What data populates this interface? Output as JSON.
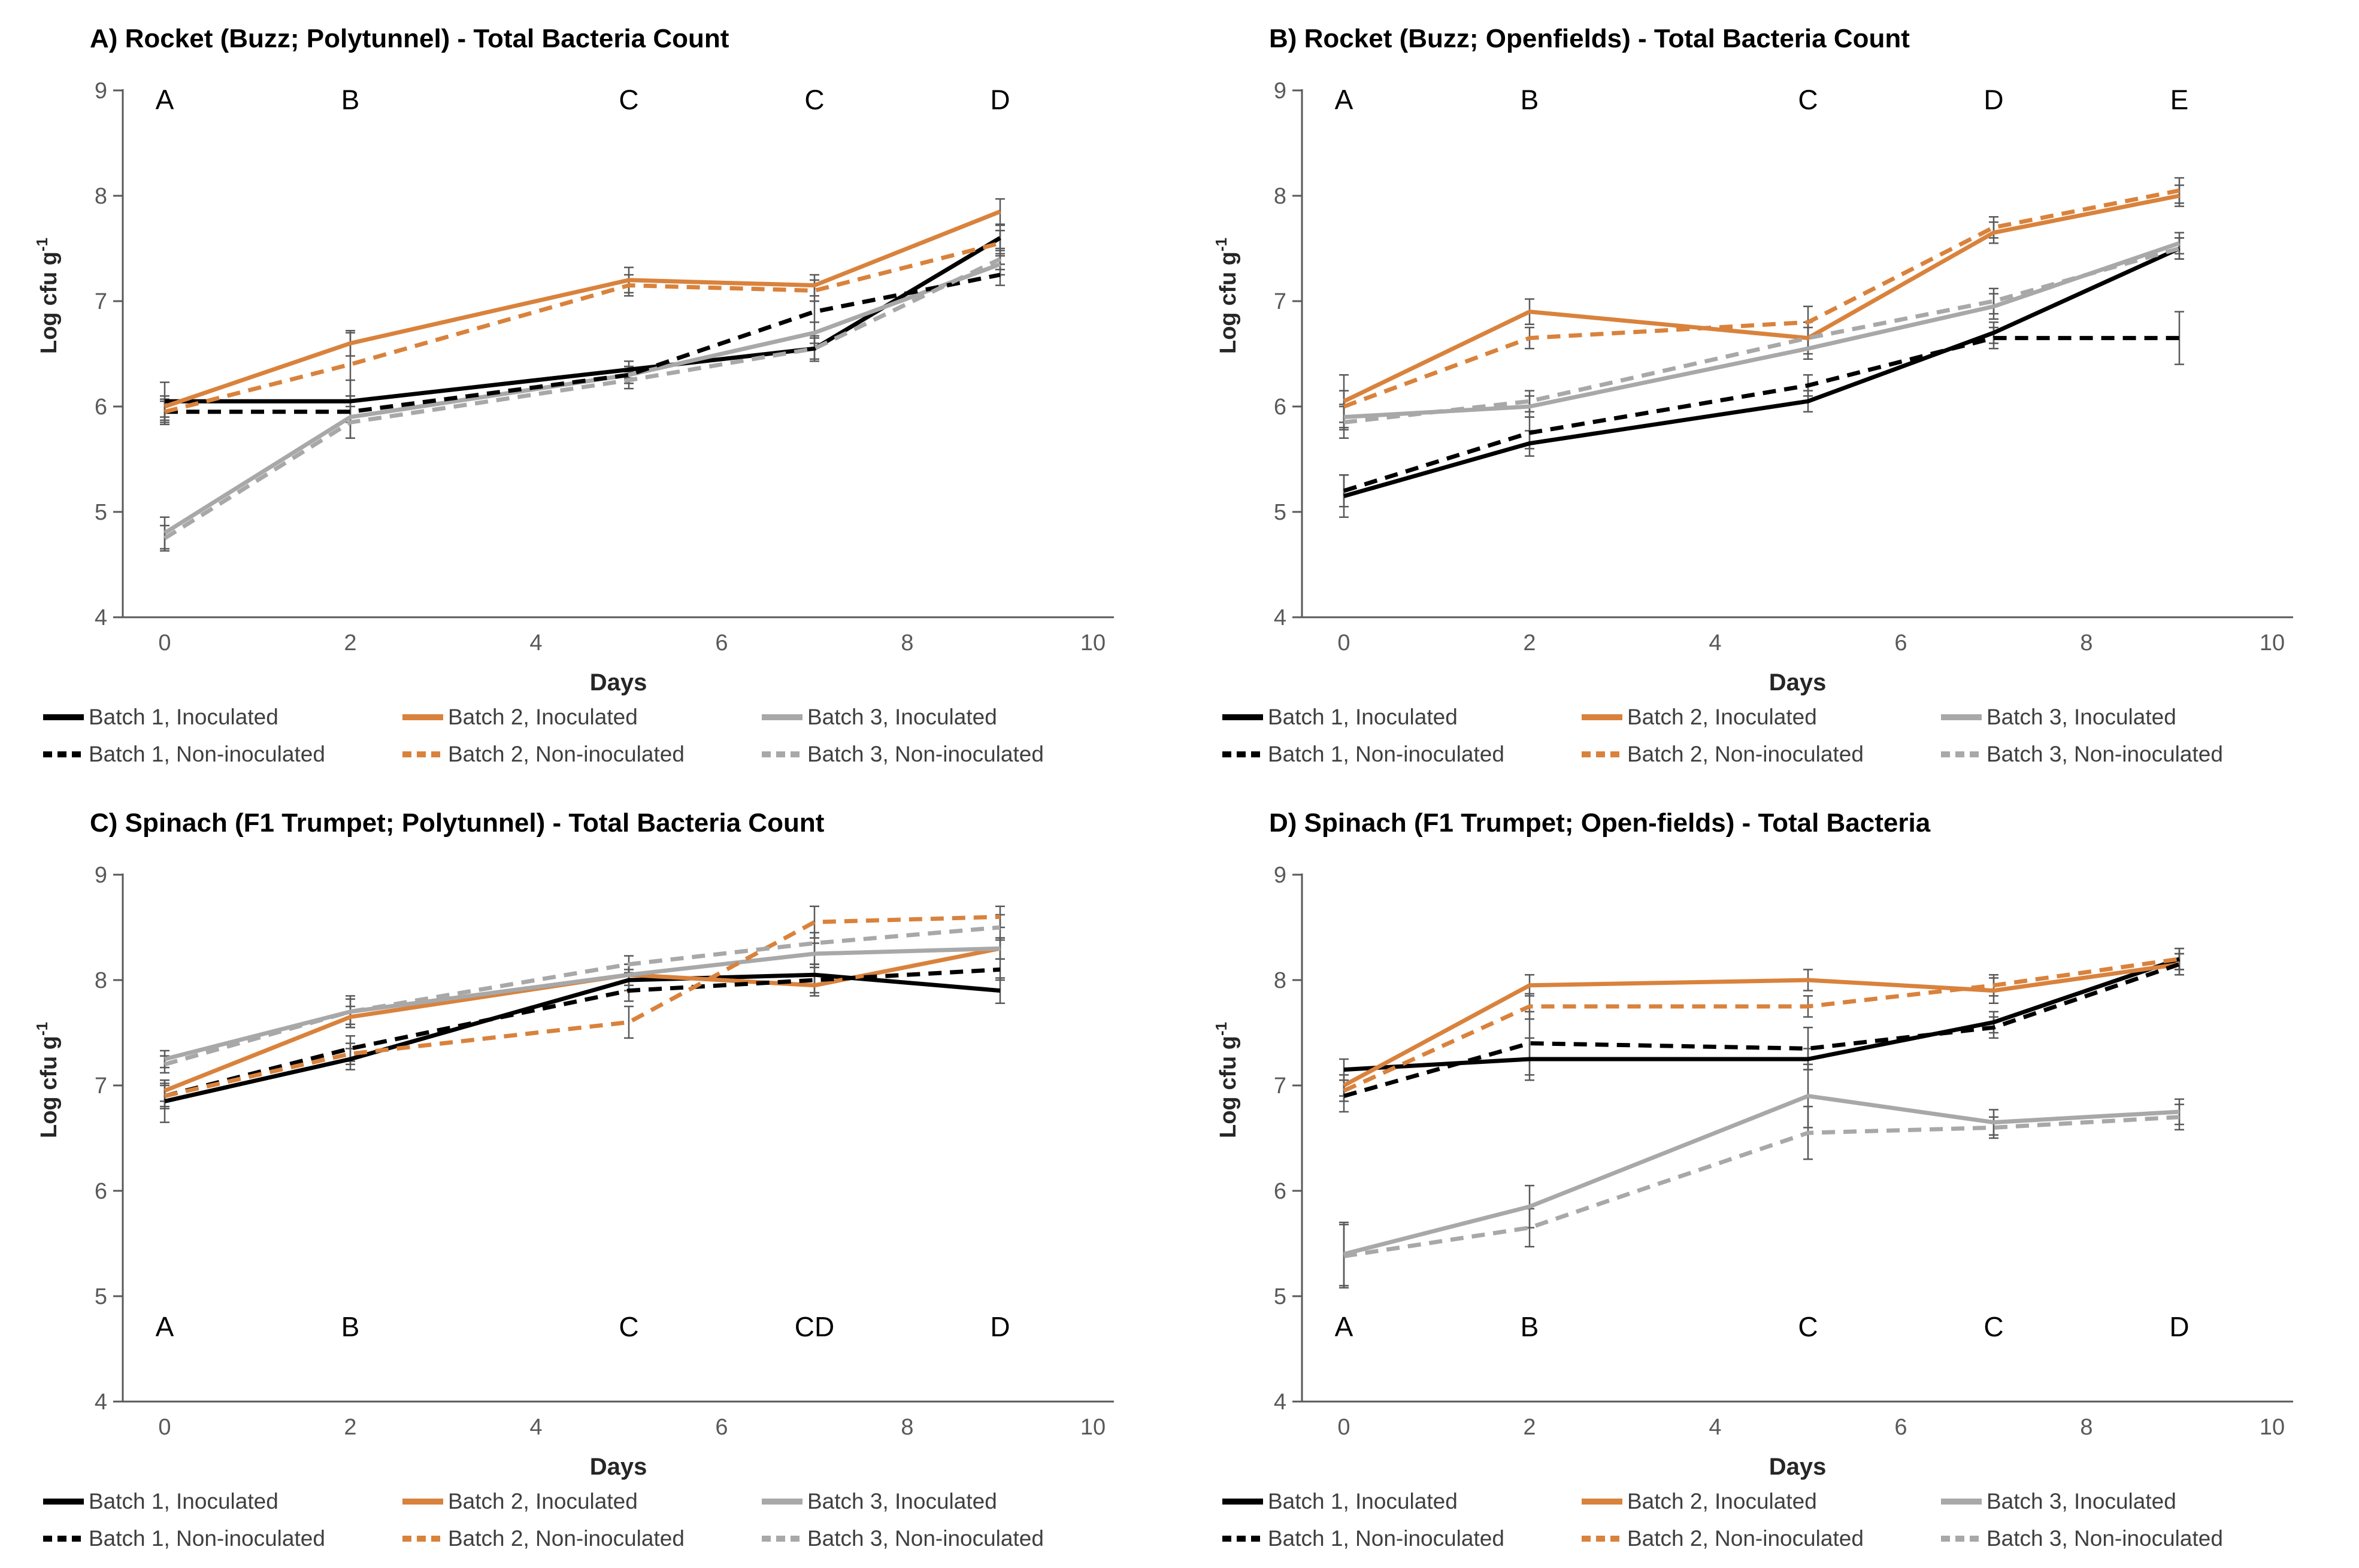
{
  "colors": {
    "batch1": "#000000",
    "batch2": "#D9823C",
    "batch3": "#A8A8A8",
    "axis": "#595959",
    "tick_text": "#595959",
    "error_bar": "#595959",
    "legend_text": "#3F3F3F",
    "title_text": "#000000",
    "letter_text": "#000000"
  },
  "shared": {
    "xlabel": "Days",
    "ylabel": "Log cfu g",
    "ylabel_superscript": "-1",
    "xticks": [
      0,
      2,
      4,
      6,
      8,
      10
    ],
    "yticks": [
      9,
      8,
      7,
      6,
      5,
      4
    ],
    "ylim": [
      4,
      9
    ],
    "grid": "off",
    "legend_position": "bottom"
  },
  "chart_data": [
    {
      "type": "line",
      "title": "A) Rocket (Buzz; Polytunnel) - Total Bacteria Count",
      "letters_position": "top",
      "x_days": [
        0,
        2,
        5,
        7,
        9
      ],
      "letters": [
        {
          "label": "A",
          "day": 0
        },
        {
          "label": "B",
          "day": 2
        },
        {
          "label": "C",
          "day": 5
        },
        {
          "label": "C",
          "day": 7
        },
        {
          "label": "D",
          "day": 9
        }
      ],
      "series": [
        {
          "name": "Batch 1, Inoculated",
          "batch": "batch1",
          "style": "solid",
          "values": [
            6.05,
            6.05,
            6.35,
            6.55,
            7.6
          ],
          "errors": [
            0.18,
            0.2,
            0.08,
            0.1,
            0.12
          ]
        },
        {
          "name": "Batch 2, Inoculated",
          "batch": "batch2",
          "style": "solid",
          "values": [
            6.0,
            6.6,
            7.2,
            7.15,
            7.85
          ],
          "errors": [
            0.1,
            0.12,
            0.12,
            0.1,
            0.12
          ]
        },
        {
          "name": "Batch 3, Inoculated",
          "batch": "batch3",
          "style": "solid",
          "values": [
            4.8,
            5.9,
            6.3,
            6.7,
            7.35
          ],
          "errors": [
            0.15,
            0.2,
            0.08,
            0.1,
            0.1
          ]
        },
        {
          "name": "Batch 1, Non-inoculated",
          "batch": "batch1",
          "style": "dashed",
          "values": [
            5.95,
            5.95,
            6.3,
            6.9,
            7.25
          ],
          "errors": [
            0.12,
            0.1,
            0.08,
            0.1,
            0.1
          ]
        },
        {
          "name": "Batch 2, Non-inoculated",
          "batch": "batch2",
          "style": "dashed",
          "values": [
            5.95,
            6.4,
            7.15,
            7.1,
            7.55
          ],
          "errors": [
            0.1,
            0.3,
            0.1,
            0.1,
            0.12
          ]
        },
        {
          "name": "Batch 3, Non-inoculated",
          "batch": "batch3",
          "style": "dashed",
          "values": [
            4.75,
            5.85,
            6.25,
            6.55,
            7.4
          ],
          "errors": [
            0.12,
            0.15,
            0.08,
            0.12,
            0.1
          ]
        }
      ]
    },
    {
      "type": "line",
      "title": "B) Rocket (Buzz; Openfields) - Total Bacteria Count",
      "letters_position": "top",
      "x_days": [
        0,
        2,
        5,
        7,
        9
      ],
      "letters": [
        {
          "label": "A",
          "day": 0
        },
        {
          "label": "B",
          "day": 2
        },
        {
          "label": "C",
          "day": 5
        },
        {
          "label": "D",
          "day": 7
        },
        {
          "label": "E",
          "day": 9
        }
      ],
      "series": [
        {
          "name": "Batch 1, Inoculated",
          "batch": "batch1",
          "style": "solid",
          "values": [
            5.15,
            5.65,
            6.05,
            6.7,
            7.5
          ],
          "errors": [
            0.2,
            0.12,
            0.1,
            0.1,
            0.1
          ]
        },
        {
          "name": "Batch 2, Inoculated",
          "batch": "batch2",
          "style": "solid",
          "values": [
            6.05,
            6.9,
            6.65,
            7.65,
            8.0
          ],
          "errors": [
            0.25,
            0.12,
            0.15,
            0.1,
            0.1
          ]
        },
        {
          "name": "Batch 3, Inoculated",
          "batch": "batch3",
          "style": "solid",
          "values": [
            5.9,
            6.0,
            6.55,
            6.95,
            7.55
          ],
          "errors": [
            0.12,
            0.1,
            0.1,
            0.12,
            0.1
          ]
        },
        {
          "name": "Batch 1, Non-inoculated",
          "batch": "batch1",
          "style": "dashed",
          "values": [
            5.2,
            5.75,
            6.2,
            6.65,
            6.65
          ],
          "errors": [
            0.15,
            0.15,
            0.1,
            0.1,
            0.25
          ]
        },
        {
          "name": "Batch 2, Non-inoculated",
          "batch": "batch2",
          "style": "dashed",
          "values": [
            6.0,
            6.65,
            6.8,
            7.7,
            8.05
          ],
          "errors": [
            0.15,
            0.1,
            0.15,
            0.1,
            0.12
          ]
        },
        {
          "name": "Batch 3, Non-inoculated",
          "batch": "batch3",
          "style": "dashed",
          "values": [
            5.85,
            6.05,
            6.65,
            7.0,
            7.5
          ],
          "errors": [
            0.15,
            0.1,
            0.1,
            0.12,
            0.1
          ]
        }
      ]
    },
    {
      "type": "line",
      "title": "C) Spinach (F1 Trumpet; Polytunnel) - Total Bacteria Count",
      "letters_position": "bottom",
      "x_days": [
        0,
        2,
        5,
        7,
        9
      ],
      "letters": [
        {
          "label": "A",
          "day": 0
        },
        {
          "label": "B",
          "day": 2
        },
        {
          "label": "C",
          "day": 5
        },
        {
          "label": "CD",
          "day": 7
        },
        {
          "label": "D",
          "day": 9
        }
      ],
      "series": [
        {
          "name": "Batch 1, Inoculated",
          "batch": "batch1",
          "style": "solid",
          "values": [
            6.85,
            7.25,
            8.0,
            8.05,
            7.9
          ],
          "errors": [
            0.2,
            0.1,
            0.1,
            0.1,
            0.12
          ]
        },
        {
          "name": "Batch 2, Inoculated",
          "batch": "batch2",
          "style": "solid",
          "values": [
            6.95,
            7.65,
            8.05,
            7.95,
            8.3
          ],
          "errors": [
            0.1,
            0.1,
            0.1,
            0.1,
            0.1
          ]
        },
        {
          "name": "Batch 3, Inoculated",
          "batch": "batch3",
          "style": "solid",
          "values": [
            7.25,
            7.7,
            8.05,
            8.25,
            8.3
          ],
          "errors": [
            0.08,
            0.15,
            0.1,
            0.1,
            0.1
          ]
        },
        {
          "name": "Batch 1, Non-inoculated",
          "batch": "batch1",
          "style": "dashed",
          "values": [
            6.9,
            7.35,
            7.9,
            8.0,
            8.1
          ],
          "errors": [
            0.12,
            0.12,
            0.1,
            0.12,
            0.1
          ]
        },
        {
          "name": "Batch 2, Non-inoculated",
          "batch": "batch2",
          "style": "dashed",
          "values": [
            6.9,
            7.3,
            7.6,
            8.55,
            8.6
          ],
          "errors": [
            0.1,
            0.1,
            0.15,
            0.15,
            0.1
          ]
        },
        {
          "name": "Batch 3, Non-inoculated",
          "batch": "batch3",
          "style": "dashed",
          "values": [
            7.2,
            7.7,
            8.15,
            8.35,
            8.5
          ],
          "errors": [
            0.08,
            0.12,
            0.08,
            0.1,
            0.12
          ]
        }
      ]
    },
    {
      "type": "line",
      "title": "D) Spinach (F1 Trumpet; Open-fields) - Total Bacteria",
      "letters_position": "bottom",
      "x_days": [
        0,
        2,
        5,
        7,
        9
      ],
      "letters": [
        {
          "label": "A",
          "day": 0
        },
        {
          "label": "B",
          "day": 2
        },
        {
          "label": "C",
          "day": 5
        },
        {
          "label": "C",
          "day": 7
        },
        {
          "label": "D",
          "day": 9
        }
      ],
      "series": [
        {
          "name": "Batch 1, Inoculated",
          "batch": "batch1",
          "style": "solid",
          "values": [
            7.15,
            7.25,
            7.25,
            7.6,
            8.2
          ],
          "errors": [
            0.1,
            0.2,
            0.1,
            0.1,
            0.1
          ]
        },
        {
          "name": "Batch 2, Inoculated",
          "batch": "batch2",
          "style": "solid",
          "values": [
            7.0,
            7.95,
            8.0,
            7.9,
            8.15
          ],
          "errors": [
            0.1,
            0.1,
            0.1,
            0.12,
            0.1
          ]
        },
        {
          "name": "Batch 3, Inoculated",
          "batch": "batch3",
          "style": "solid",
          "values": [
            5.4,
            5.85,
            6.9,
            6.65,
            6.75
          ],
          "errors": [
            0.3,
            0.2,
            0.3,
            0.12,
            0.12
          ]
        },
        {
          "name": "Batch 1, Non-inoculated",
          "batch": "batch1",
          "style": "dashed",
          "values": [
            6.9,
            7.4,
            7.35,
            7.55,
            8.15
          ],
          "errors": [
            0.15,
            0.3,
            0.2,
            0.1,
            0.1
          ]
        },
        {
          "name": "Batch 2, Non-inoculated",
          "batch": "batch2",
          "style": "dashed",
          "values": [
            6.95,
            7.75,
            7.75,
            7.95,
            8.2
          ],
          "errors": [
            0.1,
            0.12,
            0.1,
            0.1,
            0.1
          ]
        },
        {
          "name": "Batch 3, Non-inoculated",
          "batch": "batch3",
          "style": "dashed",
          "values": [
            5.38,
            5.65,
            6.55,
            6.6,
            6.7
          ],
          "errors": [
            0.3,
            0.18,
            0.25,
            0.1,
            0.12
          ]
        }
      ]
    }
  ]
}
